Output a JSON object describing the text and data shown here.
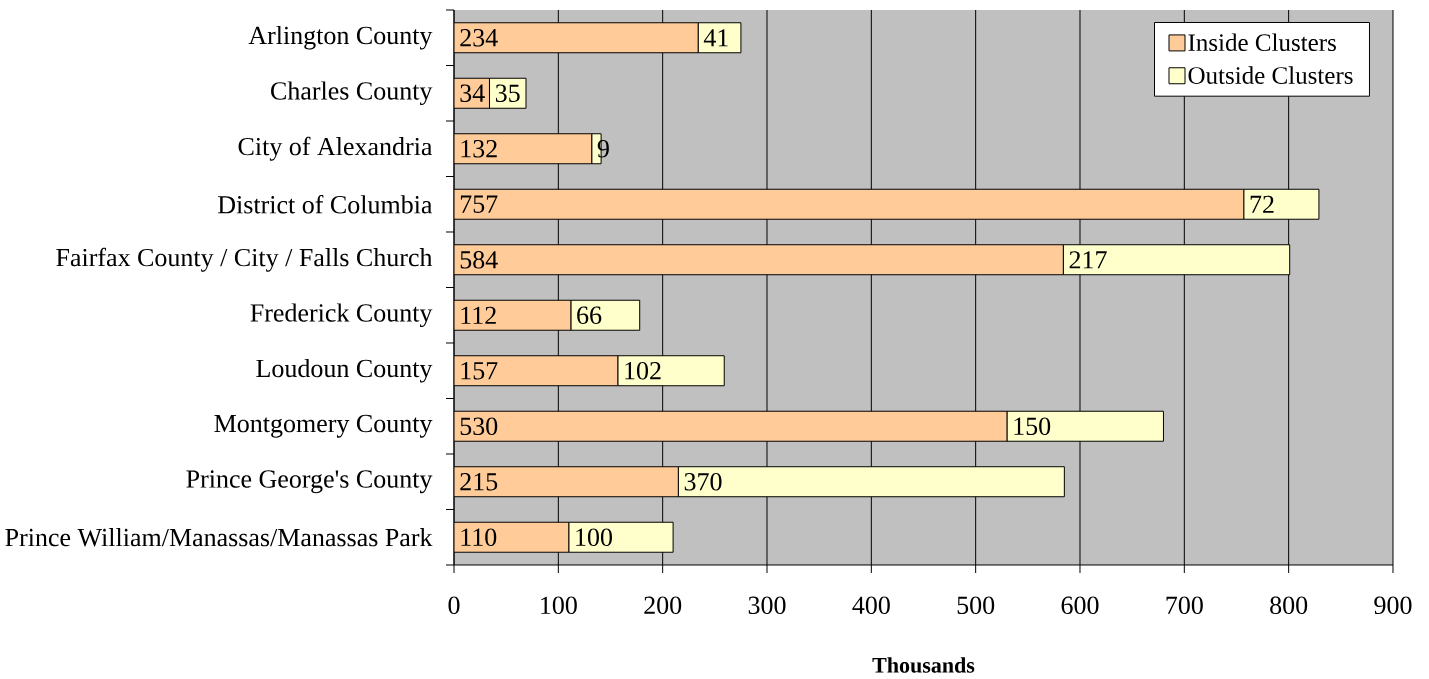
{
  "chart_data": {
    "type": "bar",
    "orientation": "horizontal",
    "stacked": true,
    "xlabel": "Thousands",
    "categories": [
      "Arlington County",
      "Charles County",
      "City of Alexandria",
      "District of Columbia",
      "Fairfax County / City / Falls Church",
      "Frederick County",
      "Loudoun County",
      "Montgomery County",
      "Prince George's County",
      "Prince William/Manassas/Manassas Park"
    ],
    "series": [
      {
        "name": "Inside Clusters",
        "color": "#ffcc99",
        "values": [
          234,
          34,
          132,
          757,
          584,
          112,
          157,
          530,
          215,
          110
        ]
      },
      {
        "name": "Outside Clusters",
        "color": "#ffffcc",
        "values": [
          41,
          35,
          9,
          72,
          217,
          66,
          102,
          150,
          370,
          100
        ]
      }
    ],
    "xlim": [
      0,
      900
    ],
    "xticks": [
      0,
      100,
      200,
      300,
      400,
      500,
      600,
      700,
      800,
      900
    ],
    "grid": "x",
    "legend": "top right",
    "data_labels": true
  }
}
